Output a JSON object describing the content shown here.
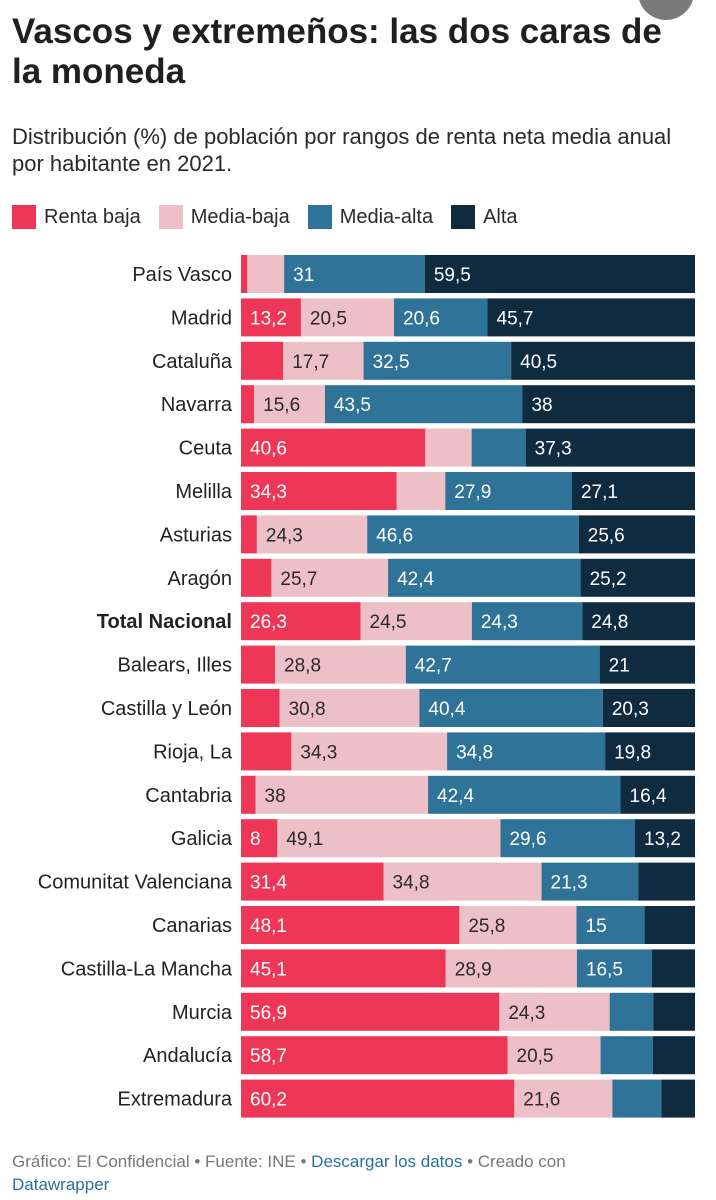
{
  "title": "Vascos y extremeños: las dos caras de la moneda",
  "subtitle": "Distribución (%) de población por rangos de renta neta media anual por habitante en 2021.",
  "footer": {
    "credit": "Gráfico: El Confidencial",
    "separator": " • ",
    "source": "Fuente: INE",
    "download": "Descargar los datos",
    "created": "Creado con",
    "tool": "Datawrapper"
  },
  "colors": {
    "Renta baja": "#ee3656",
    "Media-baja": "#edbfc6",
    "Media-alta": "#2f7399",
    "Alta": "#0f2b40"
  },
  "chart_data": {
    "type": "bar",
    "orientation": "horizontal",
    "stacked": true,
    "xlim": [
      0,
      100
    ],
    "legend_position": "top-left",
    "categories": [
      "País Vasco",
      "Madrid",
      "Cataluña",
      "Navarra",
      "Ceuta",
      "Melilla",
      "Asturias",
      "Aragón",
      "Total Nacional",
      "Balears, Illes",
      "Castilla y León",
      "Rioja, La",
      "Cantabria",
      "Galicia",
      "Comunitat Valenciana",
      "Canarias",
      "Castilla-La Mancha",
      "Murcia",
      "Andalucía",
      "Extremadura"
    ],
    "highlight_category": "Total Nacional",
    "series": [
      {
        "name": "Renta baja",
        "values": [
          1.4,
          13.2,
          9.3,
          2.9,
          40.6,
          34.3,
          3.5,
          6.7,
          26.3,
          7.5,
          8.5,
          11.1,
          3.2,
          8,
          31.4,
          48.1,
          45.1,
          56.9,
          58.7,
          60.2
        ],
        "labels": [
          "",
          "13,2",
          "",
          "",
          "40,6",
          "34,3",
          "",
          "",
          "26,3",
          "",
          "",
          "",
          "",
          "8",
          "31,4",
          "48,1",
          "45,1",
          "56,9",
          "58,7",
          "60,2"
        ]
      },
      {
        "name": "Media-baja",
        "values": [
          8.1,
          20.5,
          17.7,
          15.6,
          10.2,
          10.7,
          24.3,
          25.7,
          24.5,
          28.8,
          30.8,
          34.3,
          38,
          49.1,
          34.8,
          25.8,
          28.9,
          24.3,
          20.5,
          21.6
        ],
        "labels": [
          "",
          "20,5",
          "17,7",
          "15,6",
          "",
          "",
          "24,3",
          "25,7",
          "24,5",
          "28,8",
          "30,8",
          "34,3",
          "38",
          "49,1",
          "34,8",
          "25,8",
          "28,9",
          "24,3",
          "20,5",
          "21,6"
        ]
      },
      {
        "name": "Media-alta",
        "values": [
          31,
          20.6,
          32.5,
          43.5,
          11.9,
          27.9,
          46.6,
          42.4,
          24.3,
          42.7,
          40.4,
          34.8,
          42.4,
          29.6,
          21.3,
          15,
          16.5,
          9.6,
          11.5,
          10.8
        ],
        "labels": [
          "31",
          "20,6",
          "32,5",
          "43,5",
          "",
          "27,9",
          "46,6",
          "42,4",
          "24,3",
          "42,7",
          "40,4",
          "34,8",
          "42,4",
          "29,6",
          "21,3",
          "15",
          "16,5",
          "",
          "",
          ""
        ]
      },
      {
        "name": "Alta",
        "values": [
          59.5,
          45.7,
          40.5,
          38,
          37.3,
          27.1,
          25.6,
          25.2,
          24.8,
          21,
          20.3,
          19.8,
          16.4,
          13.2,
          12.5,
          11.1,
          9.5,
          9.2,
          9.3,
          7.4
        ],
        "labels": [
          "59,5",
          "45,7",
          "40,5",
          "38",
          "37,3",
          "27,1",
          "25,6",
          "25,2",
          "24,8",
          "21",
          "20,3",
          "19,8",
          "16,4",
          "13,2",
          "",
          "",
          "",
          "",
          "",
          ""
        ]
      }
    ]
  }
}
